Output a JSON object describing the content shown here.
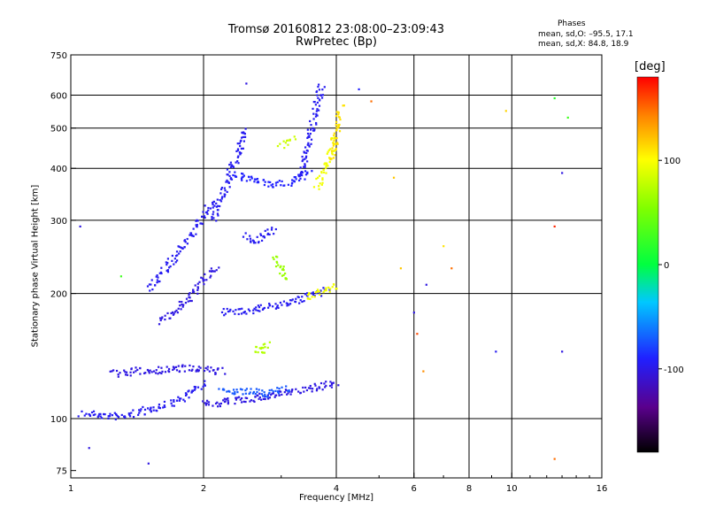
{
  "header": {
    "title": "Tromsø 20160812 23:08:00–23:09:43",
    "subtitle": "RwPretec (Bp)"
  },
  "phases": {
    "heading": "Phases",
    "line_o": "mean, sd,O: –95.5, 17.1",
    "line_x": "mean, sd,X:  84.8, 18.9"
  },
  "chart_data": {
    "type": "scatter",
    "xlabel": "Frequency [MHz]",
    "ylabel": "Stationary phase Virtual Height [km]",
    "x_scale": "log",
    "y_scale": "log",
    "xlim": [
      1,
      16
    ],
    "ylim": [
      72,
      750
    ],
    "x_ticks": [
      1,
      2,
      4,
      6,
      8,
      10,
      16
    ],
    "x_minor_ticks": [
      3,
      5,
      7,
      9,
      11,
      12,
      13,
      14,
      15
    ],
    "x_grid": [
      2,
      4,
      6,
      8,
      10
    ],
    "y_ticks": [
      75,
      100,
      200,
      300,
      400,
      500,
      600,
      750
    ],
    "y_grid": [
      100,
      200,
      300,
      400,
      500,
      600
    ],
    "colorbar": {
      "label": "[deg]",
      "range": [
        -180,
        180
      ],
      "ticks": [
        100,
        0,
        -100
      ]
    },
    "traces": [
      {
        "x": [
          1.06,
          1.15,
          1.3,
          1.45,
          1.6,
          1.75,
          1.9,
          2.0
        ],
        "y": [
          103,
          102,
          101,
          104,
          107,
          111,
          117,
          122
        ],
        "phase": -105
      },
      {
        "x": [
          1.25,
          1.4,
          1.6,
          1.8,
          2.0,
          2.2
        ],
        "y": [
          128,
          130,
          131,
          132,
          131,
          130
        ],
        "phase": -110
      },
      {
        "x": [
          2.0,
          2.3,
          2.6,
          2.9,
          3.2,
          3.6,
          4.0
        ],
        "y": [
          108,
          110,
          112,
          114,
          116,
          119,
          122
        ],
        "phase": -110
      },
      {
        "x": [
          2.2,
          2.5,
          2.8,
          3.1
        ],
        "y": [
          117,
          116,
          115,
          118
        ],
        "phase": -80
      },
      {
        "x": [
          1.6,
          1.75,
          1.9,
          2.0,
          2.15
        ],
        "y": [
          170,
          185,
          200,
          215,
          230
        ],
        "phase": -110
      },
      {
        "x": [
          1.5,
          1.65,
          1.8,
          1.95,
          2.1
        ],
        "y": [
          205,
          230,
          260,
          295,
          335
        ],
        "phase": -105
      },
      {
        "x": [
          2.1,
          2.2,
          2.3,
          2.4,
          2.5
        ],
        "y": [
          300,
          340,
          390,
          440,
          500
        ],
        "phase": -105
      },
      {
        "x": [
          2.2,
          2.6,
          3.0,
          3.4,
          3.8
        ],
        "y": [
          180,
          183,
          188,
          196,
          205
        ],
        "phase": -105
      },
      {
        "x": [
          3.4,
          3.6,
          3.8,
          4.0
        ],
        "y": [
          195,
          200,
          205,
          210
        ],
        "phase": 95
      },
      {
        "x": [
          2.3,
          2.6,
          2.9,
          3.2,
          3.5
        ],
        "y": [
          390,
          375,
          365,
          372,
          395
        ],
        "phase": -100
      },
      {
        "x": [
          2.5,
          2.6,
          2.75,
          2.9
        ],
        "y": [
          275,
          268,
          276,
          285
        ],
        "phase": -105
      },
      {
        "x": [
          3.3,
          3.4,
          3.5,
          3.6,
          3.7
        ],
        "y": [
          380,
          430,
          490,
          560,
          640
        ],
        "phase": -105
      },
      {
        "x": [
          3.6,
          3.7,
          3.8,
          3.9,
          4.0
        ],
        "y": [
          360,
          380,
          410,
          440,
          480
        ],
        "phase": 95
      },
      {
        "x": [
          3.9,
          4.0,
          4.1
        ],
        "y": [
          420,
          500,
          560
        ],
        "phase": 110
      },
      {
        "x": [
          2.9,
          3.0,
          3.1
        ],
        "y": [
          245,
          230,
          215
        ],
        "phase": 60
      },
      {
        "x": [
          2.6,
          2.7,
          2.8
        ],
        "y": [
          148,
          145,
          150
        ],
        "phase": 70
      },
      {
        "x": [
          3.0,
          3.2
        ],
        "y": [
          450,
          470
        ],
        "phase": 80
      }
    ],
    "isolated_points": [
      {
        "x": 1.3,
        "y": 220,
        "phase": 25
      },
      {
        "x": 2.5,
        "y": 640,
        "phase": -110
      },
      {
        "x": 4.5,
        "y": 620,
        "phase": -100
      },
      {
        "x": 4.8,
        "y": 580,
        "phase": 150
      },
      {
        "x": 5.4,
        "y": 380,
        "phase": 120
      },
      {
        "x": 5.6,
        "y": 230,
        "phase": 120
      },
      {
        "x": 6.0,
        "y": 180,
        "phase": -110
      },
      {
        "x": 6.1,
        "y": 160,
        "phase": 160
      },
      {
        "x": 6.3,
        "y": 130,
        "phase": 140
      },
      {
        "x": 6.4,
        "y": 210,
        "phase": -110
      },
      {
        "x": 7.0,
        "y": 260,
        "phase": 110
      },
      {
        "x": 7.3,
        "y": 230,
        "phase": 150
      },
      {
        "x": 9.7,
        "y": 550,
        "phase": 115
      },
      {
        "x": 9.2,
        "y": 145,
        "phase": -105
      },
      {
        "x": 12.5,
        "y": 290,
        "phase": 170
      },
      {
        "x": 12.5,
        "y": 590,
        "phase": 15
      },
      {
        "x": 13.0,
        "y": 390,
        "phase": -110
      },
      {
        "x": 13.0,
        "y": 145,
        "phase": -110
      },
      {
        "x": 13.4,
        "y": 530,
        "phase": 25
      },
      {
        "x": 12.5,
        "y": 80,
        "phase": 150
      },
      {
        "x": 1.05,
        "y": 290,
        "phase": -110
      },
      {
        "x": 1.1,
        "y": 85,
        "phase": -110
      },
      {
        "x": 1.5,
        "y": 78,
        "phase": -110
      }
    ]
  },
  "colors": {
    "grid": "#000000",
    "background": "#ffffff"
  }
}
